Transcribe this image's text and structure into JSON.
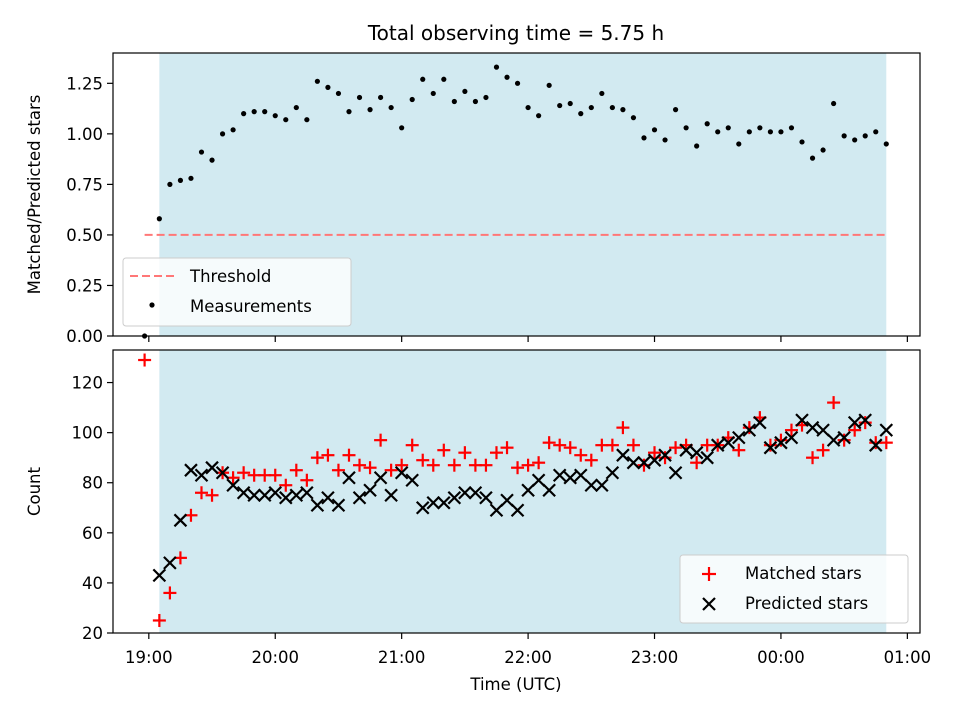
{
  "title": "Total observing time = 5.75 h",
  "chart_data": [
    {
      "type": "scatter",
      "xlabel": "",
      "ylabel": "Matched/Predicted stars",
      "xlim": [
        "18:43",
        "01:06"
      ],
      "ylim": [
        0,
        1.4
      ],
      "yticks": [
        "0.00",
        "0.25",
        "0.50",
        "0.75",
        "1.00",
        "1.25"
      ],
      "shaded_interval": [
        "19:05",
        "00:50"
      ],
      "shaded_color": "#add8e6",
      "threshold": {
        "name": "Threshold",
        "value": 0.5,
        "x": [
          "18:58",
          "00:50"
        ],
        "color": "#ff7777",
        "style": "dashed"
      },
      "legend_position": "lower-left",
      "series": [
        {
          "name": "Measurements",
          "color": "#000000",
          "marker": "dot",
          "points": [
            [
              "18:58",
              0.0
            ],
            [
              "19:05",
              0.58
            ],
            [
              "19:10",
              0.75
            ],
            [
              "19:15",
              0.77
            ],
            [
              "19:20",
              0.78
            ],
            [
              "19:25",
              0.91
            ],
            [
              "19:30",
              0.87
            ],
            [
              "19:35",
              1.0
            ],
            [
              "19:40",
              1.02
            ],
            [
              "19:45",
              1.1
            ],
            [
              "19:50",
              1.11
            ],
            [
              "19:55",
              1.11
            ],
            [
              "20:00",
              1.09
            ],
            [
              "20:05",
              1.07
            ],
            [
              "20:10",
              1.13
            ],
            [
              "20:15",
              1.07
            ],
            [
              "20:20",
              1.26
            ],
            [
              "20:25",
              1.23
            ],
            [
              "20:30",
              1.2
            ],
            [
              "20:35",
              1.11
            ],
            [
              "20:40",
              1.18
            ],
            [
              "20:45",
              1.12
            ],
            [
              "20:50",
              1.18
            ],
            [
              "20:55",
              1.13
            ],
            [
              "21:00",
              1.03
            ],
            [
              "21:05",
              1.17
            ],
            [
              "21:10",
              1.27
            ],
            [
              "21:15",
              1.2
            ],
            [
              "21:20",
              1.27
            ],
            [
              "21:25",
              1.16
            ],
            [
              "21:30",
              1.21
            ],
            [
              "21:35",
              1.16
            ],
            [
              "21:40",
              1.18
            ],
            [
              "21:45",
              1.33
            ],
            [
              "21:50",
              1.28
            ],
            [
              "21:55",
              1.25
            ],
            [
              "22:00",
              1.13
            ],
            [
              "22:05",
              1.09
            ],
            [
              "22:10",
              1.24
            ],
            [
              "22:15",
              1.14
            ],
            [
              "22:20",
              1.15
            ],
            [
              "22:25",
              1.1
            ],
            [
              "22:30",
              1.13
            ],
            [
              "22:35",
              1.2
            ],
            [
              "22:40",
              1.13
            ],
            [
              "22:45",
              1.12
            ],
            [
              "22:50",
              1.08
            ],
            [
              "22:55",
              0.98
            ],
            [
              "23:00",
              1.02
            ],
            [
              "23:05",
              0.97
            ],
            [
              "23:10",
              1.12
            ],
            [
              "23:15",
              1.03
            ],
            [
              "23:20",
              0.94
            ],
            [
              "23:25",
              1.05
            ],
            [
              "23:30",
              1.01
            ],
            [
              "23:35",
              1.03
            ],
            [
              "23:40",
              0.95
            ],
            [
              "23:45",
              1.01
            ],
            [
              "23:50",
              1.03
            ],
            [
              "23:55",
              1.01
            ],
            [
              "00:00",
              1.01
            ],
            [
              "00:05",
              1.03
            ],
            [
              "00:10",
              0.96
            ],
            [
              "00:15",
              0.88
            ],
            [
              "00:20",
              0.92
            ],
            [
              "00:25",
              1.15
            ],
            [
              "00:30",
              0.99
            ],
            [
              "00:35",
              0.97
            ],
            [
              "00:40",
              0.99
            ],
            [
              "00:45",
              1.01
            ],
            [
              "00:50",
              0.95
            ]
          ]
        }
      ]
    },
    {
      "type": "scatter",
      "xlabel": "Time (UTC)",
      "ylabel": "Count",
      "xlim": [
        "18:43",
        "01:06"
      ],
      "ylim": [
        20,
        133
      ],
      "yticks": [
        "20",
        "40",
        "60",
        "80",
        "100",
        "120"
      ],
      "xticks": [
        "19:00",
        "20:00",
        "21:00",
        "22:00",
        "23:00",
        "00:00",
        "01:00"
      ],
      "shaded_interval": [
        "19:05",
        "00:50"
      ],
      "shaded_color": "#add8e6",
      "legend_position": "lower-right",
      "series": [
        {
          "name": "Matched stars",
          "color": "#ff0000",
          "marker": "plus",
          "points": [
            [
              "18:58",
              129
            ],
            [
              "19:05",
              25
            ],
            [
              "19:10",
              36
            ],
            [
              "19:15",
              50
            ],
            [
              "19:20",
              67
            ],
            [
              "19:25",
              76
            ],
            [
              "19:30",
              75
            ],
            [
              "19:35",
              84
            ],
            [
              "19:40",
              82
            ],
            [
              "19:45",
              84
            ],
            [
              "19:50",
              83
            ],
            [
              "19:55",
              83
            ],
            [
              "20:00",
              83
            ],
            [
              "20:05",
              79
            ],
            [
              "20:10",
              85
            ],
            [
              "20:15",
              81
            ],
            [
              "20:20",
              90
            ],
            [
              "20:25",
              91
            ],
            [
              "20:30",
              85
            ],
            [
              "20:35",
              91
            ],
            [
              "20:40",
              87
            ],
            [
              "20:45",
              86
            ],
            [
              "20:50",
              97
            ],
            [
              "20:55",
              85
            ],
            [
              "21:00",
              87
            ],
            [
              "21:05",
              95
            ],
            [
              "21:10",
              89
            ],
            [
              "21:15",
              87
            ],
            [
              "21:20",
              93
            ],
            [
              "21:25",
              87
            ],
            [
              "21:30",
              92
            ],
            [
              "21:35",
              87
            ],
            [
              "21:40",
              87
            ],
            [
              "21:45",
              92
            ],
            [
              "21:50",
              94
            ],
            [
              "21:55",
              86
            ],
            [
              "22:00",
              87
            ],
            [
              "22:05",
              88
            ],
            [
              "22:10",
              96
            ],
            [
              "22:15",
              95
            ],
            [
              "22:20",
              94
            ],
            [
              "22:25",
              91
            ],
            [
              "22:30",
              89
            ],
            [
              "22:35",
              95
            ],
            [
              "22:40",
              95
            ],
            [
              "22:45",
              102
            ],
            [
              "22:50",
              95
            ],
            [
              "22:55",
              87
            ],
            [
              "23:00",
              92
            ],
            [
              "23:05",
              90
            ],
            [
              "23:10",
              94
            ],
            [
              "23:15",
              95
            ],
            [
              "23:20",
              88
            ],
            [
              "23:25",
              95
            ],
            [
              "23:30",
              95
            ],
            [
              "23:35",
              98
            ],
            [
              "23:40",
              93
            ],
            [
              "23:45",
              102
            ],
            [
              "23:50",
              106
            ],
            [
              "23:55",
              95
            ],
            [
              "00:00",
              97
            ],
            [
              "00:05",
              101
            ],
            [
              "00:10",
              103
            ],
            [
              "00:15",
              90
            ],
            [
              "00:20",
              93
            ],
            [
              "00:25",
              112
            ],
            [
              "00:30",
              97
            ],
            [
              "00:35",
              101
            ],
            [
              "00:40",
              104
            ],
            [
              "00:45",
              96
            ],
            [
              "00:50",
              96
            ]
          ]
        },
        {
          "name": "Predicted stars",
          "color": "#000000",
          "marker": "x",
          "points": [
            [
              "19:05",
              43
            ],
            [
              "19:10",
              48
            ],
            [
              "19:15",
              65
            ],
            [
              "19:20",
              85
            ],
            [
              "19:25",
              83
            ],
            [
              "19:30",
              86
            ],
            [
              "19:35",
              84
            ],
            [
              "19:40",
              79
            ],
            [
              "19:45",
              76
            ],
            [
              "19:50",
              75
            ],
            [
              "19:55",
              75
            ],
            [
              "20:00",
              76
            ],
            [
              "20:05",
              74
            ],
            [
              "20:10",
              75
            ],
            [
              "20:15",
              76
            ],
            [
              "20:20",
              71
            ],
            [
              "20:25",
              74
            ],
            [
              "20:30",
              71
            ],
            [
              "20:35",
              82
            ],
            [
              "20:40",
              74
            ],
            [
              "20:45",
              77
            ],
            [
              "20:50",
              82
            ],
            [
              "20:55",
              75
            ],
            [
              "21:00",
              84
            ],
            [
              "21:05",
              81
            ],
            [
              "21:10",
              70
            ],
            [
              "21:15",
              72
            ],
            [
              "21:20",
              72
            ],
            [
              "21:25",
              74
            ],
            [
              "21:30",
              76
            ],
            [
              "21:35",
              76
            ],
            [
              "21:40",
              74
            ],
            [
              "21:45",
              69
            ],
            [
              "21:50",
              73
            ],
            [
              "21:55",
              69
            ],
            [
              "22:00",
              77
            ],
            [
              "22:05",
              81
            ],
            [
              "22:10",
              77
            ],
            [
              "22:15",
              83
            ],
            [
              "22:20",
              82
            ],
            [
              "22:25",
              83
            ],
            [
              "22:30",
              79
            ],
            [
              "22:35",
              79
            ],
            [
              "22:40",
              84
            ],
            [
              "22:45",
              91
            ],
            [
              "22:50",
              88
            ],
            [
              "22:55",
              88
            ],
            [
              "23:00",
              89
            ],
            [
              "23:05",
              91
            ],
            [
              "23:10",
              84
            ],
            [
              "23:15",
              93
            ],
            [
              "23:20",
              92
            ],
            [
              "23:25",
              90
            ],
            [
              "23:30",
              95
            ],
            [
              "23:35",
              96
            ],
            [
              "23:40",
              98
            ],
            [
              "23:45",
              101
            ],
            [
              "23:50",
              104
            ],
            [
              "23:55",
              94
            ],
            [
              "00:00",
              96
            ],
            [
              "00:05",
              98
            ],
            [
              "00:10",
              105
            ],
            [
              "00:15",
              102
            ],
            [
              "00:20",
              101
            ],
            [
              "00:25",
              97
            ],
            [
              "00:30",
              98
            ],
            [
              "00:35",
              104
            ],
            [
              "00:40",
              105
            ],
            [
              "00:45",
              95
            ],
            [
              "00:50",
              101
            ]
          ]
        }
      ]
    }
  ]
}
